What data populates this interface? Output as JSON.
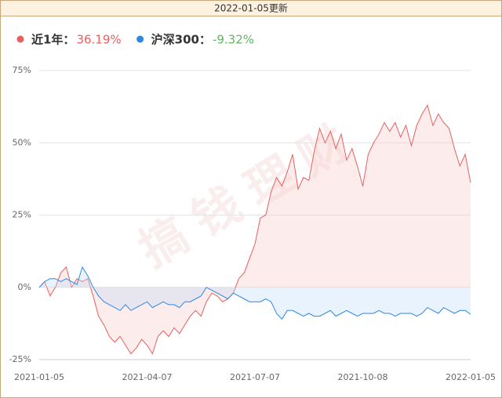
{
  "header": {
    "updated": "2022-01-05更新"
  },
  "watermark": "搞钱理财",
  "chart_data": {
    "type": "line",
    "categories": [
      "2021-01-05",
      null,
      null,
      null,
      null,
      null,
      null,
      null,
      null,
      null,
      null,
      null,
      null,
      null,
      null,
      null,
      null,
      null,
      null,
      null,
      "2021-04-07",
      null,
      null,
      null,
      null,
      null,
      null,
      null,
      null,
      null,
      null,
      null,
      null,
      null,
      null,
      null,
      null,
      null,
      null,
      null,
      "2021-07-07",
      null,
      null,
      null,
      null,
      null,
      null,
      null,
      null,
      null,
      null,
      null,
      null,
      null,
      null,
      null,
      null,
      null,
      null,
      null,
      "2021-10-08",
      null,
      null,
      null,
      null,
      null,
      null,
      null,
      null,
      null,
      null,
      null,
      null,
      null,
      null,
      null,
      null,
      null,
      null,
      null,
      "2022-01-05"
    ],
    "series": [
      {
        "name": "近1年：",
        "legend_value": "36.19%",
        "legend_value_color": "#e8605f",
        "color": "#e8605f",
        "fill": "rgba(248,200,200,0.35)",
        "values": [
          0,
          2,
          -3,
          0,
          5,
          7,
          0,
          3,
          2,
          3,
          -3,
          -10,
          -13,
          -17,
          -19,
          -17,
          -20,
          -23,
          -21,
          -18,
          -20,
          -23,
          -17,
          -15,
          -17,
          -14,
          -16,
          -13,
          -10,
          -8,
          -10,
          -5,
          -2,
          -3,
          -5,
          -4,
          -2,
          3,
          5,
          10,
          15,
          24,
          25,
          33,
          38,
          35,
          40,
          46,
          34,
          38,
          37,
          47,
          55,
          50,
          54,
          48,
          53,
          44,
          48,
          42,
          35,
          46,
          50,
          53,
          57,
          54,
          57,
          52,
          56,
          49,
          56,
          60,
          63,
          56,
          60,
          57,
          55,
          48,
          42,
          46,
          36.19
        ]
      },
      {
        "name": "沪深300：",
        "legend_value": "-9.32%",
        "legend_value_color": "#5cb85c",
        "color": "#2f88e0",
        "fill": "rgba(190,220,250,0.35)",
        "values": [
          0,
          2,
          3,
          3,
          2,
          3,
          2,
          1,
          7,
          4,
          0,
          -3,
          -5,
          -6,
          -7,
          -8,
          -6,
          -8,
          -7,
          -6,
          -5,
          -7,
          -6,
          -5,
          -6,
          -6,
          -7,
          -5,
          -5,
          -4,
          -3,
          0,
          -1,
          -2,
          -3,
          -4,
          -2,
          -3,
          -4,
          -5,
          -5,
          -5,
          -4,
          -5,
          -9,
          -11,
          -8,
          -8,
          -9,
          -10,
          -9,
          -10,
          -10,
          -9,
          -8,
          -10,
          -9,
          -8,
          -9,
          -10,
          -9,
          -9,
          -9,
          -8,
          -9,
          -9,
          -10,
          -9,
          -9,
          -9,
          -10,
          -9,
          -7,
          -8,
          -9,
          -7,
          -8,
          -9,
          -8,
          -8,
          -9.32
        ]
      }
    ],
    "ylim": [
      -25,
      75
    ],
    "yticks": [
      {
        "value": -25,
        "label": "-25%"
      },
      {
        "value": 0,
        "label": "0%"
      },
      {
        "value": 25,
        "label": "25%"
      },
      {
        "value": 50,
        "label": "50%"
      },
      {
        "value": 75,
        "label": "75%"
      }
    ],
    "grid": true
  }
}
